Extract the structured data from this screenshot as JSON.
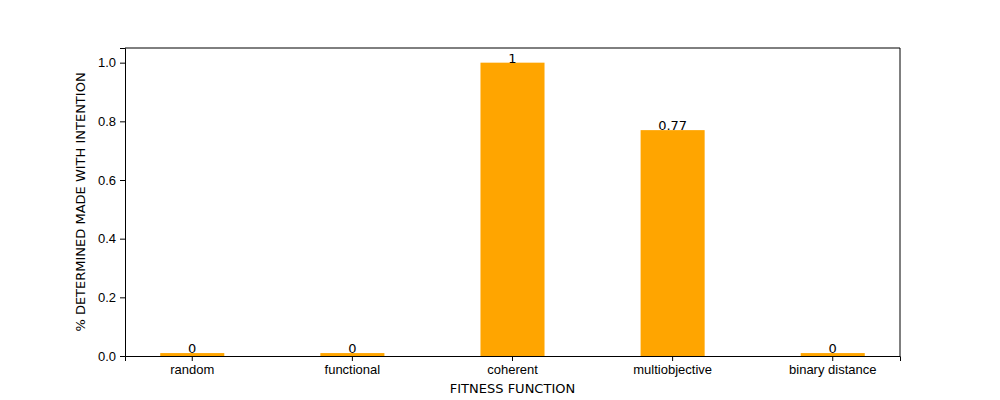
{
  "chart_data": {
    "type": "bar",
    "xlabel": "FITNESS FUNCTION",
    "ylabel": "% DETERMINED MADE WITH INTENTION",
    "categories": [
      "random",
      "functional",
      "coherent",
      "multiobjective",
      "binary distance"
    ],
    "values": [
      0.01,
      0.01,
      1,
      0.77,
      0.01
    ],
    "value_labels": [
      "0",
      "0",
      "1",
      "0.77",
      "0"
    ],
    "color": "#ffa500",
    "ylim": [
      0,
      1.05
    ],
    "yticks": [
      {
        "value": 0,
        "label": "0.0"
      },
      {
        "value": 0.2,
        "label": "0.2"
      },
      {
        "value": 0.4,
        "label": "0.4"
      },
      {
        "value": 0.6,
        "label": "0.6"
      },
      {
        "value": 0.8,
        "label": "0.8"
      },
      {
        "value": 1,
        "label": "1.0"
      }
    ],
    "data_labels": true
  }
}
